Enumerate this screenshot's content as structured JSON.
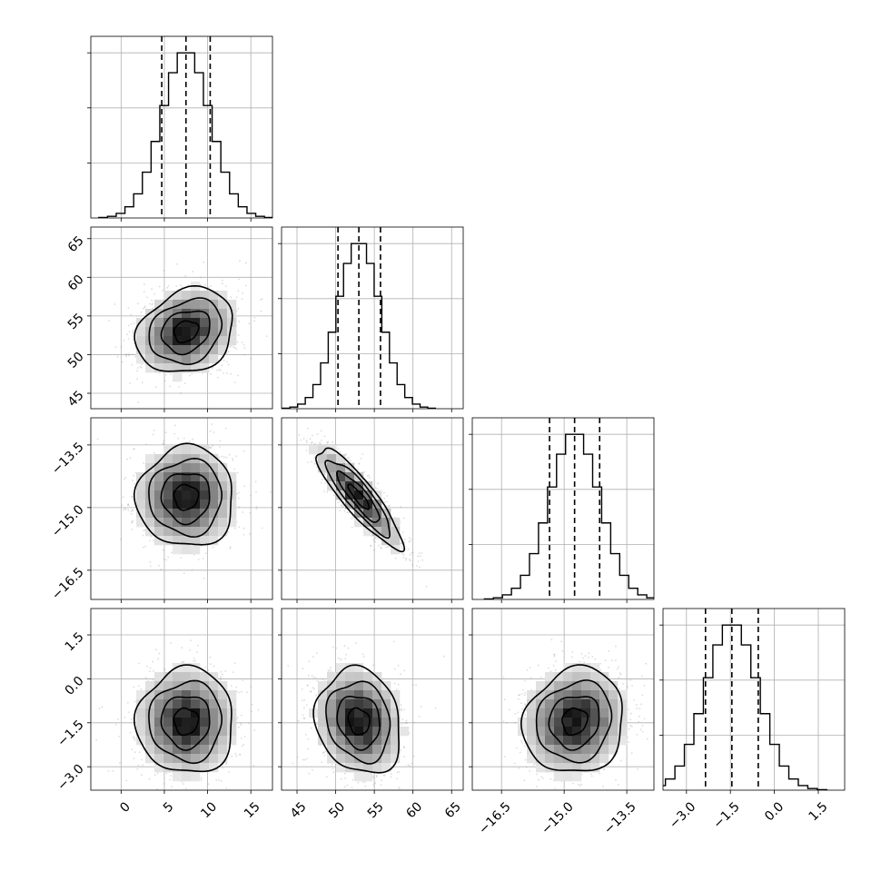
{
  "chart_data": {
    "type": "corner",
    "params": [
      {
        "median": 7.5,
        "q16": 4.7,
        "q84": 10.3,
        "sd": 2.8,
        "range": [
          -3.5,
          17.5
        ],
        "ticks": [
          0,
          5,
          10,
          15
        ],
        "ticklabels": [
          "0",
          "5",
          "10",
          "15"
        ]
      },
      {
        "median": 53.0,
        "q16": 50.3,
        "q84": 55.8,
        "sd": 2.75,
        "range": [
          43.0,
          66.5
        ],
        "ticks": [
          45,
          50,
          55,
          60,
          65
        ],
        "ticklabels": [
          "45",
          "50",
          "55",
          "60",
          "65"
        ]
      },
      {
        "median": -14.75,
        "q16": -15.35,
        "q84": -14.15,
        "sd": 0.6,
        "range": [
          -17.2,
          -12.85
        ],
        "ticks": [
          -16.5,
          -15.0,
          -13.5
        ],
        "ticklabels": [
          "−16.5",
          "−15.0",
          "−13.5"
        ]
      },
      {
        "median": -1.45,
        "q16": -2.35,
        "q84": -0.55,
        "sd": 0.9,
        "range": [
          -3.8,
          2.4
        ],
        "ticks": [
          -3.0,
          -1.5,
          0.0,
          1.5
        ],
        "ticklabels": [
          "−3.0",
          "−1.5",
          "0.0",
          "1.5"
        ]
      }
    ],
    "correlations": [
      {
        "pair": [
          0,
          1
        ],
        "rho": 0.2
      },
      {
        "pair": [
          0,
          2
        ],
        "rho": 0.0
      },
      {
        "pair": [
          1,
          2
        ],
        "rho": -0.88
      },
      {
        "pair": [
          0,
          3
        ],
        "rho": 0.0
      },
      {
        "pair": [
          1,
          3
        ],
        "rho": -0.15
      },
      {
        "pair": [
          2,
          3
        ],
        "rho": 0.1
      }
    ],
    "hist_bins": 20,
    "grid": true,
    "quantile_lines": [
      0.16,
      0.5,
      0.84
    ],
    "contour_levels_sigma": [
      0.5,
      1.0,
      1.5,
      2.0
    ]
  }
}
